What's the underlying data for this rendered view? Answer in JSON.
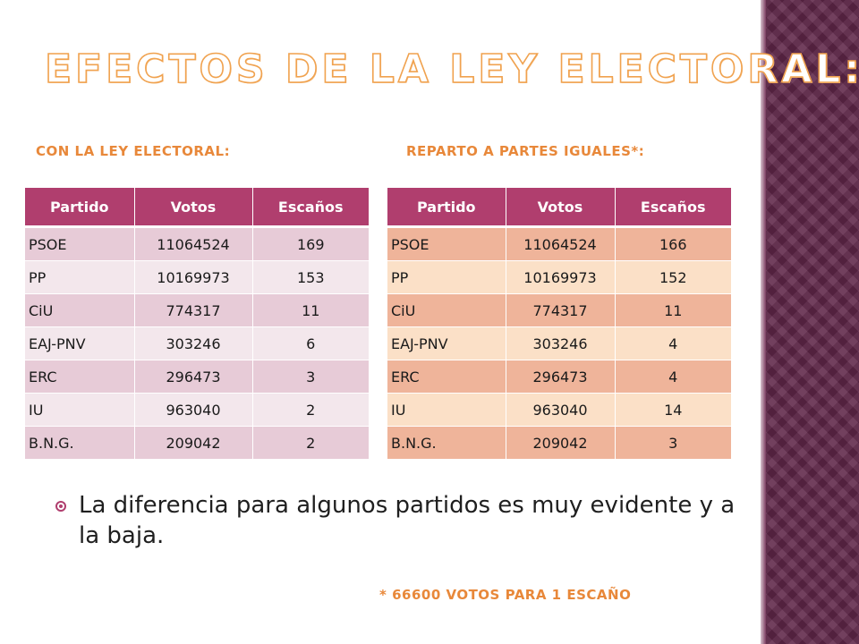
{
  "title": "EFECTOS DE LA LEY ELECTORAL:",
  "left_section": {
    "label": "CON LA LEY ELECTORAL:",
    "headers": [
      "Partido",
      "Votos",
      "Escaños"
    ],
    "rows": [
      [
        "PSOE",
        "11064524",
        "169"
      ],
      [
        "PP",
        "10169973",
        "153"
      ],
      [
        "CiU",
        "774317",
        "11"
      ],
      [
        "EAJ-PNV",
        "303246",
        "6"
      ],
      [
        "ERC",
        "296473",
        "3"
      ],
      [
        "IU",
        "963040",
        "2"
      ],
      [
        "B.N.G.",
        "209042",
        "2"
      ]
    ]
  },
  "right_section": {
    "label": "REPARTO A PARTES IGUALES*:",
    "headers": [
      "Partido",
      "Votos",
      "Escaños"
    ],
    "rows": [
      [
        "PSOE",
        "11064524",
        "166"
      ],
      [
        "PP",
        "10169973",
        "152"
      ],
      [
        "CiU",
        "774317",
        "11"
      ],
      [
        "EAJ-PNV",
        "303246",
        "4"
      ],
      [
        "ERC",
        "296473",
        "4"
      ],
      [
        "IU",
        "963040",
        "14"
      ],
      [
        "B.N.G.",
        "209042",
        "3"
      ]
    ]
  },
  "bullet": {
    "icon": "target-bullet-icon",
    "text": "La diferencia para algunos partidos es muy evidente y a la baja."
  },
  "footnote": "* 66600 VOTOS PARA 1 ESCAÑO",
  "colors": {
    "accent_orange": "#e8883a",
    "header_magenta": "#b03e6e",
    "sidebar_purple": "#5e2547"
  }
}
